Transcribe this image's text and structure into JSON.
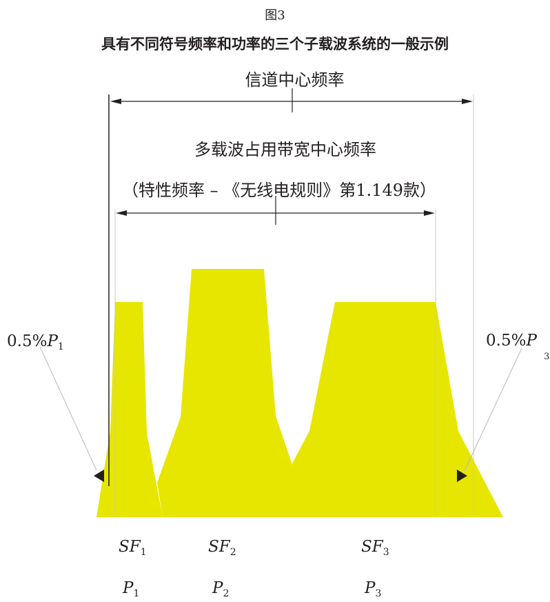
{
  "figure": {
    "label": "图3",
    "title": "具有不同符号频率和功率的三个子载波系统的一般示例"
  },
  "annotations": {
    "channel_center": "信道中心频率",
    "multicarrier_center": "多载波占用带宽中心频率",
    "characteristic": "（特性频率 – 《无线电规则》第1.149款）"
  },
  "edge_labels": {
    "left": {
      "value": "0.5%",
      "symbol": "P",
      "sub": "1"
    },
    "right": {
      "value": "0.5%",
      "symbol": "P",
      "sub": "3"
    }
  },
  "subcarriers": [
    {
      "sf": "SF",
      "sf_sub": "1",
      "p": "P",
      "p_sub": "1"
    },
    {
      "sf": "SF",
      "sf_sub": "2",
      "p": "P",
      "p_sub": "2"
    },
    {
      "sf": "SF",
      "sf_sub": "3",
      "p": "P",
      "p_sub": "3"
    }
  ],
  "colors": {
    "fill": "#e6e600",
    "line": "#231f20",
    "leader": "#b0b0b0"
  }
}
